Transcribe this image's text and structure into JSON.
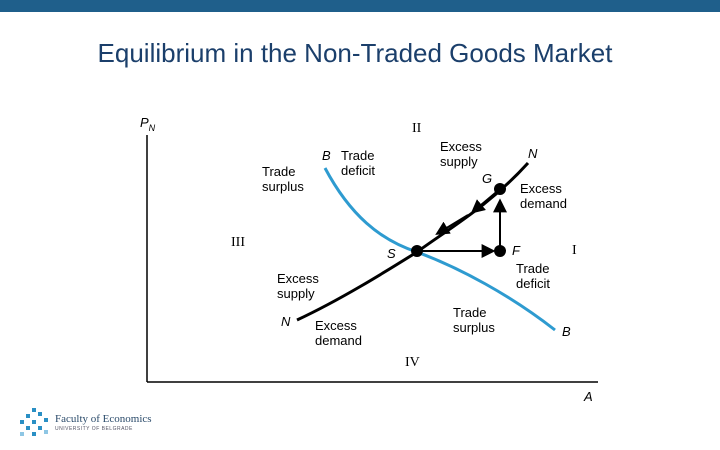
{
  "header": {
    "title": "Equilibrium in the Non-Traded Goods Market"
  },
  "diagram": {
    "axis_y": "P",
    "axis_y_sub": "N",
    "axis_x": "A",
    "regions": {
      "one": "I",
      "two": "II",
      "three": "III",
      "four": "IV"
    },
    "curves": {
      "bb_top": "B",
      "bb_bottom": "B",
      "nn_top": "N",
      "nn_bottom": "N"
    },
    "points": {
      "s": "S",
      "g": "G",
      "f": "F"
    },
    "labels": {
      "trade_surplus_top": [
        "Trade",
        "surplus"
      ],
      "trade_deficit_top": [
        "Trade",
        "deficit"
      ],
      "excess_supply_top": [
        "Excess",
        "supply"
      ],
      "excess_demand_g": [
        "Excess",
        "demand"
      ],
      "trade_deficit_f": [
        "Trade",
        "deficit"
      ],
      "excess_supply_left": [
        "Excess",
        "supply"
      ],
      "excess_demand_bottom": [
        "Excess",
        "demand"
      ],
      "trade_surplus_bottom": [
        "Trade",
        "surplus"
      ]
    },
    "colors": {
      "bb_curve": "#2e9bd0",
      "nn_curve": "#000000"
    }
  },
  "footer": {
    "logo_name": "Faculty of Economics",
    "logo_sub": "UNIVERSITY OF BELGRADE"
  }
}
